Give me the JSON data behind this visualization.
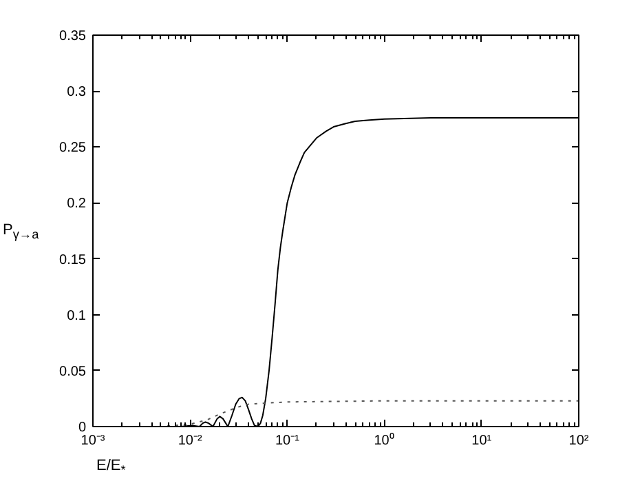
{
  "chart_data": {
    "type": "line",
    "xlabel": "E/E$_{*}$",
    "ylabel": "P$_{γ→a}$",
    "log": "x",
    "xlim": [
      0.001,
      100
    ],
    "ylim": [
      0,
      0.35
    ],
    "xticks": [
      {
        "value": 0.001,
        "label": "10⁻³"
      },
      {
        "value": 0.01,
        "label": "10⁻²"
      },
      {
        "value": 0.1,
        "label": "10⁻¹"
      },
      {
        "value": 1,
        "label": "10⁰"
      },
      {
        "value": 10,
        "label": "10¹"
      },
      {
        "value": 100,
        "label": "10²"
      }
    ],
    "yticks": [
      0,
      0.05,
      0.1,
      0.15,
      0.2,
      0.25,
      0.3,
      0.35
    ],
    "grid": false,
    "series": [
      {
        "color": "#000000",
        "line_style": "solid",
        "x": [
          0.001,
          0.008,
          0.0105,
          0.0125,
          0.0135,
          0.0144,
          0.0155,
          0.0172,
          0.019,
          0.0202,
          0.0218,
          0.0245,
          0.027,
          0.0295,
          0.032,
          0.0344,
          0.037,
          0.04,
          0.043,
          0.046,
          0.05,
          0.053,
          0.056,
          0.06,
          0.065,
          0.07,
          0.075,
          0.08,
          0.085,
          0.09,
          0.1,
          0.11,
          0.12,
          0.135,
          0.15,
          0.175,
          0.2,
          0.25,
          0.3,
          0.4,
          0.5,
          0.7,
          1,
          3,
          10,
          100
        ],
        "values": [
          0,
          0,
          0.001,
          0,
          0.003,
          0.004,
          0.003,
          0,
          0.007,
          0.009,
          0.007,
          0,
          0.01,
          0.02,
          0.025,
          0.026,
          0.023,
          0.015,
          0.007,
          0.001,
          0,
          0.003,
          0.01,
          0.025,
          0.05,
          0.08,
          0.11,
          0.14,
          0.16,
          0.175,
          0.2,
          0.214,
          0.225,
          0.236,
          0.245,
          0.252,
          0.258,
          0.264,
          0.268,
          0.271,
          0.273,
          0.274,
          0.275,
          0.276,
          0.276,
          0.276
        ]
      },
      {
        "color": "#555555",
        "line_style": "dotted",
        "x": [
          0.001,
          0.005,
          0.01,
          0.015,
          0.02,
          0.03,
          0.04,
          0.06,
          0.1,
          1,
          100
        ],
        "values": [
          0,
          0,
          0.002,
          0.006,
          0.011,
          0.017,
          0.02,
          0.021,
          0.022,
          0.023,
          0.023
        ]
      }
    ]
  }
}
